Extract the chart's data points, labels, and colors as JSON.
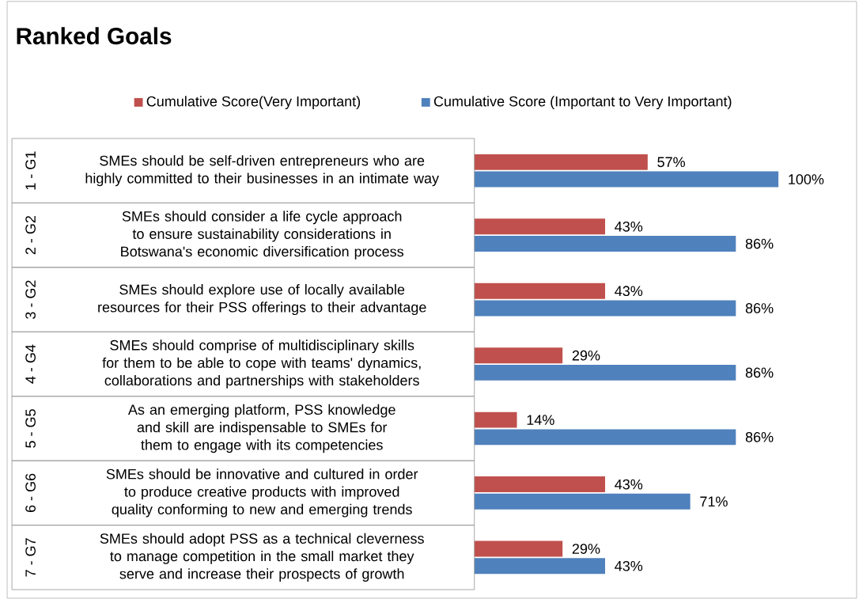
{
  "chart_data": {
    "type": "bar",
    "orientation": "horizontal",
    "title": "Ranked Goals",
    "legend": "top",
    "categories": [
      "SMEs should be self-driven entrepreneurs who are highly committed to their businesses in an intimate way",
      "SMEs should consider a life cycle approach to ensure sustainability considerations in Botswana's economic diversification process",
      "SMEs should explore use of locally available resources for their PSS offerings to their advantage",
      "SMEs should comprise of multidisciplinary skills for them to be able to cope with teams' dynamics, collaborations and partnerships with stakeholders",
      "As an emerging platform, PSS knowledge and skill are indispensable to SMEs for them to engage with its competencies",
      "SMEs should be innovative and cultured in order to produce creative products with improved quality conforming to new and emerging trends",
      "SMEs should adopt PSS as a technical cleverness to manage competition in the small market they serve and increase their prospects of growth"
    ],
    "annotations": [
      "1 - G1",
      "2 - G2",
      "3 - G2",
      "4 - G4",
      "5 - G5",
      "6 - G6",
      "7 - G7"
    ],
    "series": [
      {
        "name": "Cumulative Score(Very Important)",
        "color": "#c0504d",
        "values": [
          57,
          43,
          43,
          29,
          14,
          43,
          29
        ],
        "value_labels": [
          "57%",
          "43%",
          "43%",
          "29%",
          "14%",
          "43%",
          "29%"
        ]
      },
      {
        "name": "Cumulative Score (Important to Very Important)",
        "color": "#4f81bd",
        "values": [
          100,
          86,
          86,
          86,
          86,
          71,
          43
        ],
        "value_labels": [
          "100%",
          "86%",
          "86%",
          "86%",
          "86%",
          "71%",
          "43%"
        ]
      }
    ]
  }
}
